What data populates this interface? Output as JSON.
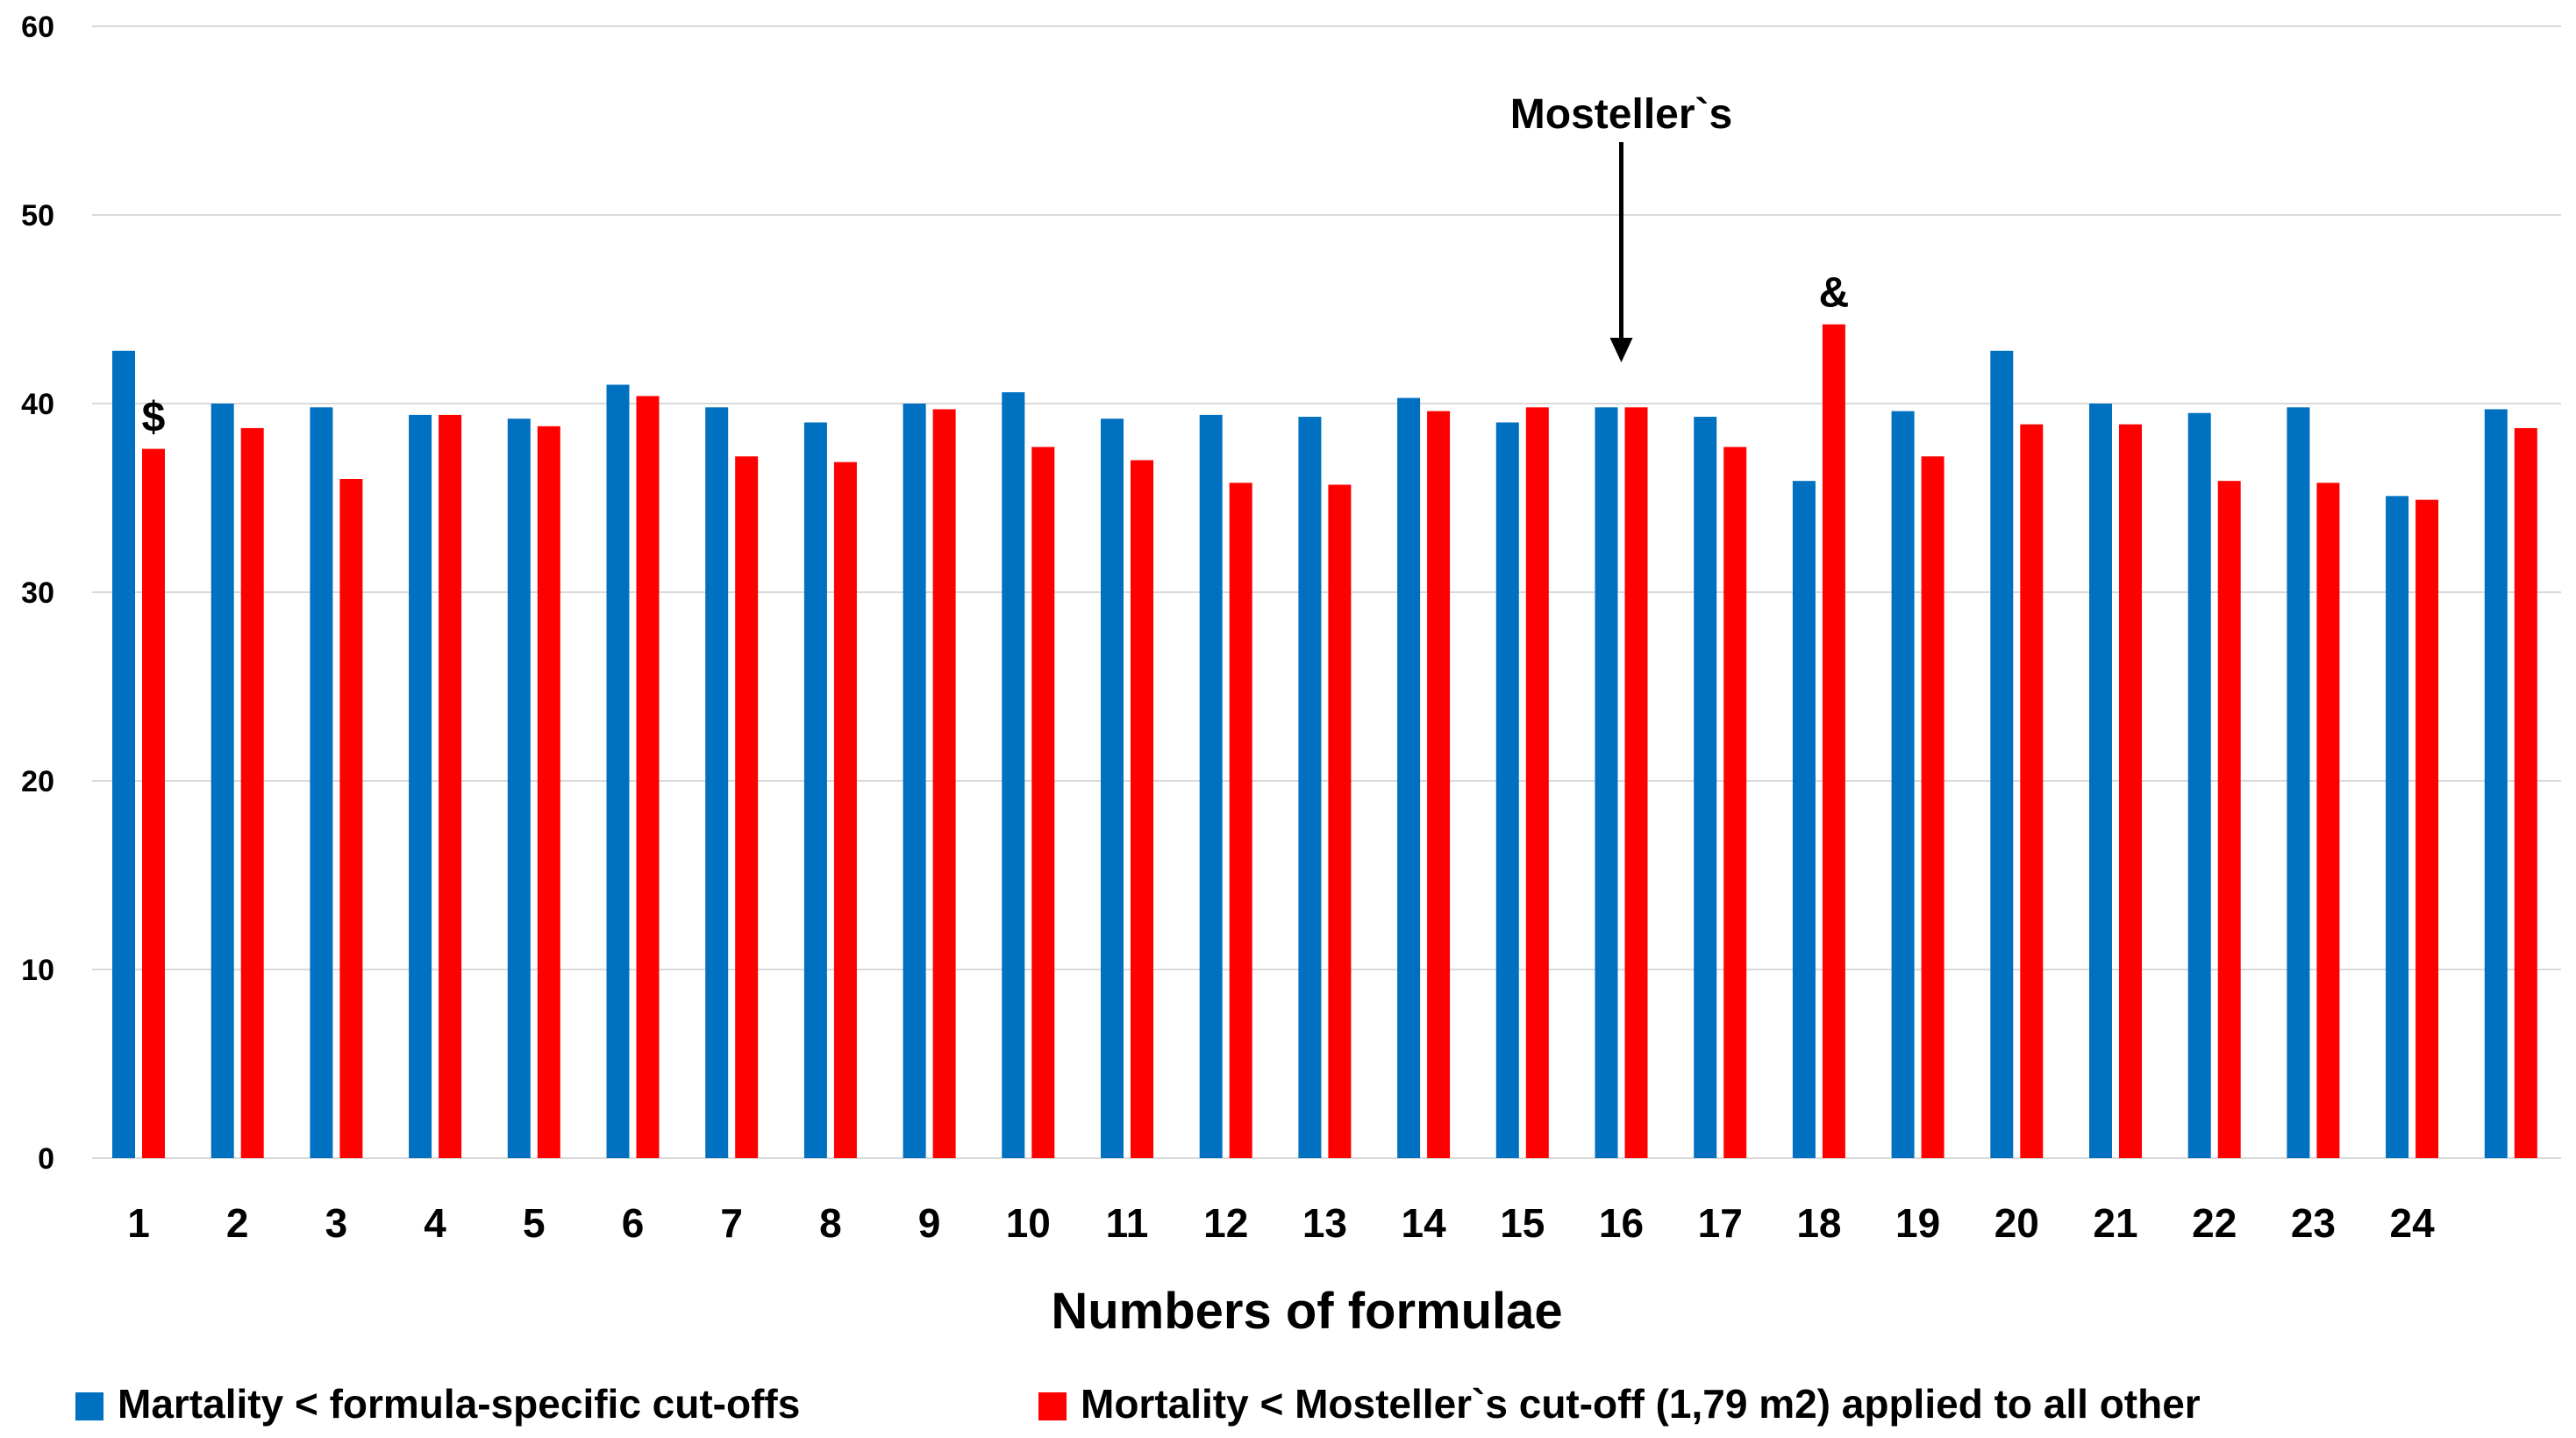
{
  "chart_data": {
    "type": "bar",
    "title": "",
    "xlabel": "Numbers of formulae",
    "ylabel": "",
    "ylim": [
      0,
      60
    ],
    "yticks": [
      0,
      10,
      20,
      30,
      40,
      50,
      60
    ],
    "grid": true,
    "categories": [
      "1",
      "2",
      "3",
      "4",
      "5",
      "6",
      "7",
      "8",
      "9",
      "10",
      "11",
      "12",
      "13",
      "14",
      "15",
      "16",
      "17",
      "18",
      "19",
      "20",
      "21",
      "22",
      "23",
      "24",
      ""
    ],
    "series": [
      {
        "name": "Martality < formula-specific cut-offs",
        "color": "#0070c0",
        "values": [
          42.8,
          40.0,
          39.8,
          39.4,
          39.2,
          41.0,
          39.8,
          39.0,
          40.0,
          40.6,
          39.2,
          39.4,
          39.3,
          40.3,
          39.0,
          39.8,
          39.3,
          35.9,
          39.6,
          42.8,
          40.0,
          39.5,
          39.8,
          35.1,
          39.7
        ]
      },
      {
        "name": "Mortality < Mosteller`s cut-off (1,79 m2) applied to all other",
        "color": "#ff0000",
        "values": [
          37.6,
          38.7,
          36.0,
          39.4,
          38.8,
          40.4,
          37.2,
          36.9,
          39.7,
          37.7,
          37.0,
          35.8,
          35.7,
          39.6,
          39.8,
          39.8,
          37.7,
          44.2,
          37.2,
          38.9,
          38.9,
          35.9,
          35.8,
          34.9,
          38.7
        ]
      }
    ],
    "annotations": [
      {
        "text": "$",
        "category": "1",
        "series": 1
      },
      {
        "text": "&",
        "category": "18",
        "series": 1
      },
      {
        "text": "Mosteller`s",
        "category": "16",
        "type": "arrow-label"
      }
    ],
    "legend": "bottom"
  }
}
